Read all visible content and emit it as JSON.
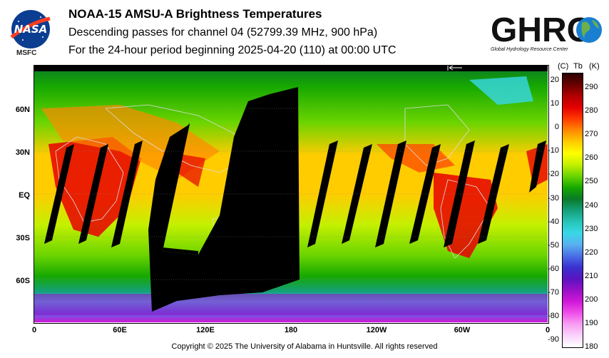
{
  "header": {
    "title": "NOAA-15 AMSU-A Brightness Temperatures",
    "subtitle1": "Descending passes for channel 04 (52799.39 MHz, 900 hPa)",
    "subtitle2": "For the 24-hour period beginning 2025-04-20 (110) at 00:00 UTC"
  },
  "logos": {
    "nasa": "NASA",
    "msfc": "MSFC",
    "ghrc": "GHRC",
    "ghrc_full": "Global Hydrology Resource Center"
  },
  "map": {
    "lat_labels": [
      "60N",
      "30N",
      "EQ",
      "30S",
      "60S"
    ],
    "lon_labels": [
      "0",
      "60E",
      "120E",
      "180",
      "120W",
      "60W",
      "0"
    ]
  },
  "colorbar": {
    "header_c": "(C)",
    "header_tb": "Tb",
    "header_k": "(K)",
    "celsius": [
      "20",
      "10",
      "0",
      "-10",
      "-20",
      "-30",
      "-40",
      "-50",
      "-60",
      "-70",
      "-80",
      "-90"
    ],
    "kelvin": [
      "290",
      "280",
      "270",
      "260",
      "250",
      "240",
      "230",
      "220",
      "210",
      "200",
      "190",
      "180"
    ],
    "colors": [
      "#2a0000",
      "#6b0000",
      "#b20000",
      "#e60000",
      "#ff3d00",
      "#ff8a00",
      "#ffcc00",
      "#ffff00",
      "#c4f000",
      "#6ad400",
      "#16a800",
      "#0a7a28",
      "#14a07a",
      "#27c4b8",
      "#38d8e8",
      "#5ab0f0",
      "#4a6ee6",
      "#3a30d0",
      "#5a14c0",
      "#9a10c8",
      "#d018d8",
      "#f050e8",
      "#f8a0f4",
      "#fad4fa",
      "#ffffff"
    ]
  },
  "footer": {
    "copyright": "Copyright © 2025 The University of Alabama in Huntsville.  All rights reserved"
  }
}
